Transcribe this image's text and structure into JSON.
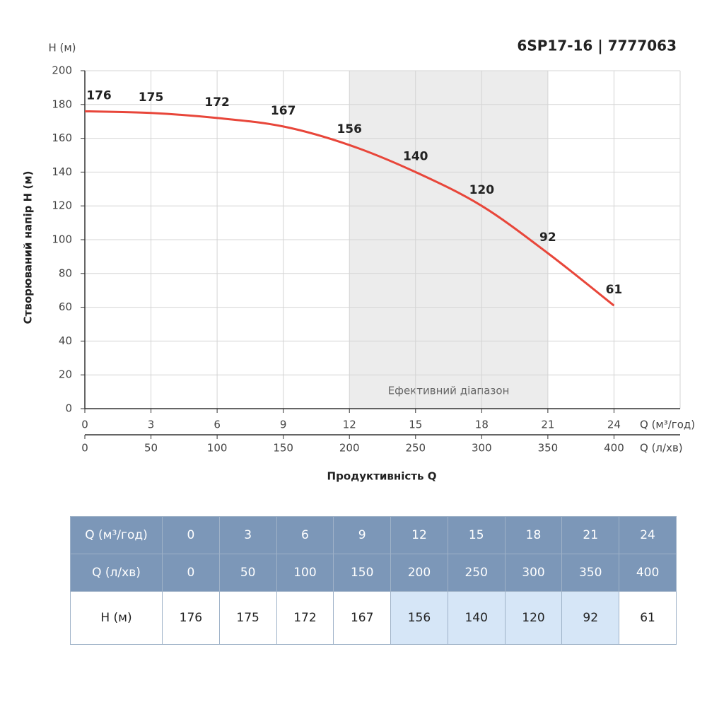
{
  "chart_data": {
    "type": "line",
    "title": "6SP17-16 | 7777063",
    "ylabel": "Створюваний напір H (м)",
    "ylabel_short": "H (м)",
    "xlabel": "Продуктивність Q",
    "x_unit": "Q (м³/год)",
    "x2_unit": "Q (л/хв)",
    "x": [
      0,
      3,
      6,
      9,
      12,
      15,
      18,
      21,
      24
    ],
    "x2": [
      0,
      50,
      100,
      150,
      200,
      250,
      300,
      350,
      400
    ],
    "series": [
      {
        "name": "H (м)",
        "color": "#e8463a",
        "values": [
          176,
          175,
          172,
          167,
          156,
          140,
          120,
          92,
          61
        ]
      }
    ],
    "xlim": [
      0,
      27
    ],
    "xticks": [
      0,
      3,
      6,
      9,
      12,
      15,
      18,
      21,
      24
    ],
    "x2lim": [
      0,
      450
    ],
    "x2ticks": [
      0,
      50,
      100,
      150,
      200,
      250,
      300,
      350,
      400
    ],
    "ylim": [
      0,
      200
    ],
    "yticks": [
      0,
      20,
      40,
      60,
      80,
      100,
      120,
      140,
      160,
      180,
      200
    ],
    "grid": true,
    "band": {
      "from": 12,
      "to": 21,
      "label": "Ефективний діапазон",
      "color": "#ececec"
    }
  }
}
